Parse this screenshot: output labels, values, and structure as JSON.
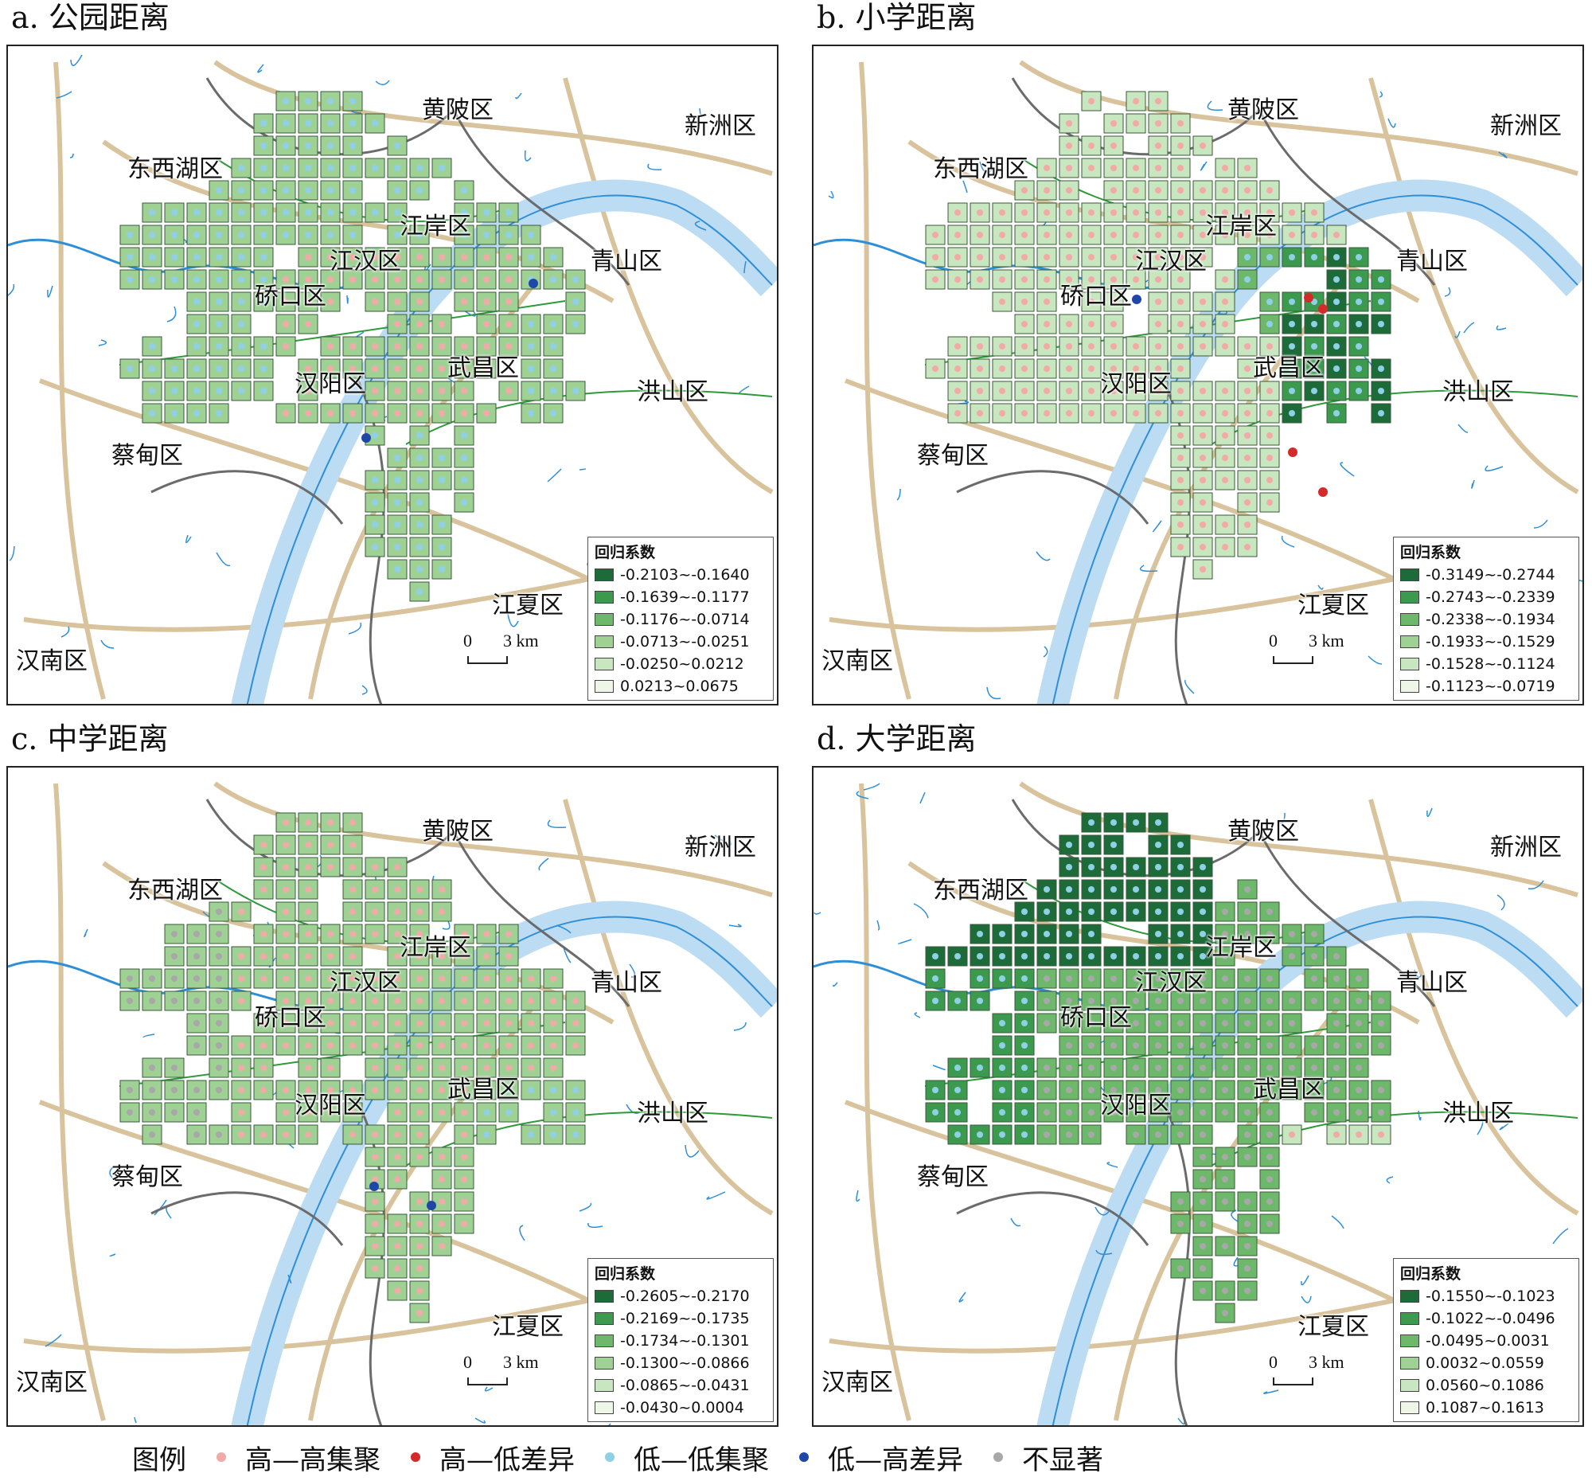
{
  "panels": [
    {
      "title": "a. 公园距离",
      "legend_title": "回归系数",
      "scale": {
        "zero": "0",
        "label": "3 km"
      },
      "classes": [
        "-0.2103~-0.1640",
        "-0.1639~-0.1177",
        "-0.1176~-0.0714",
        "-0.0713~-0.0251",
        "-0.0250~0.0212",
        "0.0213~0.0675"
      ],
      "pattern": "a"
    },
    {
      "title": "b. 小学距离",
      "legend_title": "回归系数",
      "scale": {
        "zero": "0",
        "label": "3 km"
      },
      "classes": [
        "-0.3149~-0.2744",
        "-0.2743~-0.2339",
        "-0.2338~-0.1934",
        "-0.1933~-0.1529",
        "-0.1528~-0.1124",
        "-0.1123~-0.0719"
      ],
      "pattern": "b"
    },
    {
      "title": "c. 中学距离",
      "legend_title": "回归系数",
      "scale": {
        "zero": "0",
        "label": "3 km"
      },
      "classes": [
        "-0.2605~-0.2170",
        "-0.2169~-0.1735",
        "-0.1734~-0.1301",
        "-0.1300~-0.0866",
        "-0.0865~-0.0431",
        "-0.0430~0.0004"
      ],
      "pattern": "c"
    },
    {
      "title": "d. 大学距离",
      "legend_title": "回归系数",
      "scale": {
        "zero": "0",
        "label": "3 km"
      },
      "classes": [
        "-0.1550~-0.1023",
        "-0.1022~-0.0496",
        "-0.0495~0.0031",
        "0.0032~0.0559",
        "0.0560~0.1086",
        "0.1087~0.1613"
      ],
      "pattern": "d"
    }
  ],
  "districts": [
    "黄陂区",
    "新洲区",
    "东西湖区",
    "江岸区",
    "青山区",
    "江汉区",
    "硚口区",
    "武昌区",
    "汉阳区",
    "洪山区",
    "蔡甸区",
    "江夏区",
    "汉南区"
  ],
  "class_colors": [
    "#1e6b3a",
    "#3c9a4f",
    "#6db86a",
    "#9fd195",
    "#c8e6bf",
    "#eef6e8"
  ],
  "bottom_legend": {
    "title": "图例",
    "items": [
      {
        "label": "高—高集聚",
        "color": "#f2aaa8"
      },
      {
        "label": "高—低差异",
        "color": "#d42a2a"
      },
      {
        "label": "低—低集聚",
        "color": "#8fd0e6"
      },
      {
        "label": "低—高差异",
        "color": "#1f47a8"
      },
      {
        "label": "不显著",
        "color": "#a8a8a8"
      }
    ]
  },
  "colors": {
    "road": "#d9c39c",
    "boundary": "#6b6b6b",
    "water": "#2f8fd6",
    "rail": "#2e9a3a"
  }
}
